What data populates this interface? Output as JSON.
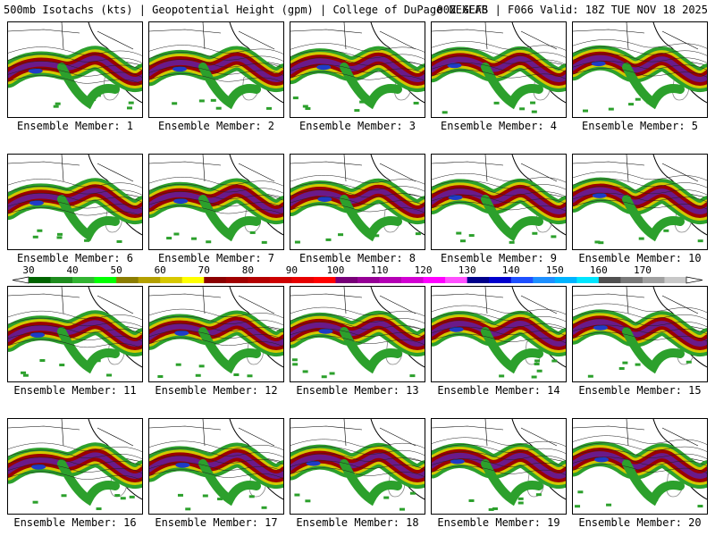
{
  "header": {
    "left": "500mb Isotachs (kts) | Geopotential Height (gpm) | College of DuPage NEXLAB",
    "right": "00Z GEFS | F066 Valid: 18Z TUE NOV 18 2025"
  },
  "panels": [
    {
      "label": "Ensemble Member: 1"
    },
    {
      "label": "Ensemble Member: 2"
    },
    {
      "label": "Ensemble Member: 3"
    },
    {
      "label": "Ensemble Member: 4"
    },
    {
      "label": "Ensemble Member: 5"
    },
    {
      "label": "Ensemble Member: 6"
    },
    {
      "label": "Ensemble Member: 7"
    },
    {
      "label": "Ensemble Member: 8"
    },
    {
      "label": "Ensemble Member: 9"
    },
    {
      "label": "Ensemble Member: 10"
    },
    {
      "label": "Ensemble Member: 11"
    },
    {
      "label": "Ensemble Member: 12"
    },
    {
      "label": "Ensemble Member: 13"
    },
    {
      "label": "Ensemble Member: 14"
    },
    {
      "label": "Ensemble Member: 15"
    },
    {
      "label": "Ensemble Member: 16"
    },
    {
      "label": "Ensemble Member: 17"
    },
    {
      "label": "Ensemble Member: 18"
    },
    {
      "label": "Ensemble Member: 19"
    },
    {
      "label": "Ensemble Member: 20"
    }
  ],
  "colorbar": {
    "labels": [
      "30",
      "40",
      "50",
      "60",
      "70",
      "80",
      "90",
      "100",
      "110",
      "120",
      "130",
      "140",
      "150",
      "160",
      "170"
    ],
    "colors": [
      "#006400",
      "#1e8c1e",
      "#32b432",
      "#00ff00",
      "#8b7d00",
      "#b4a000",
      "#d7c800",
      "#ffff00",
      "#8b0000",
      "#a00000",
      "#b40000",
      "#cd0000",
      "#e60000",
      "#ff0000",
      "#780078",
      "#960096",
      "#b400b4",
      "#d200d2",
      "#ff00ff",
      "#ff50ff",
      "#00008b",
      "#0000cd",
      "#1e50ff",
      "#1e90ff",
      "#00b4ff",
      "#00e6ff",
      "#505050",
      "#787878",
      "#a0a0a0",
      "#c8c8c8"
    ]
  },
  "colors": {
    "low": "#2ca02c",
    "mid": "#d2c800",
    "high": "#9b0000",
    "core": "#6a1a8a",
    "max": "#1e3cc8"
  }
}
